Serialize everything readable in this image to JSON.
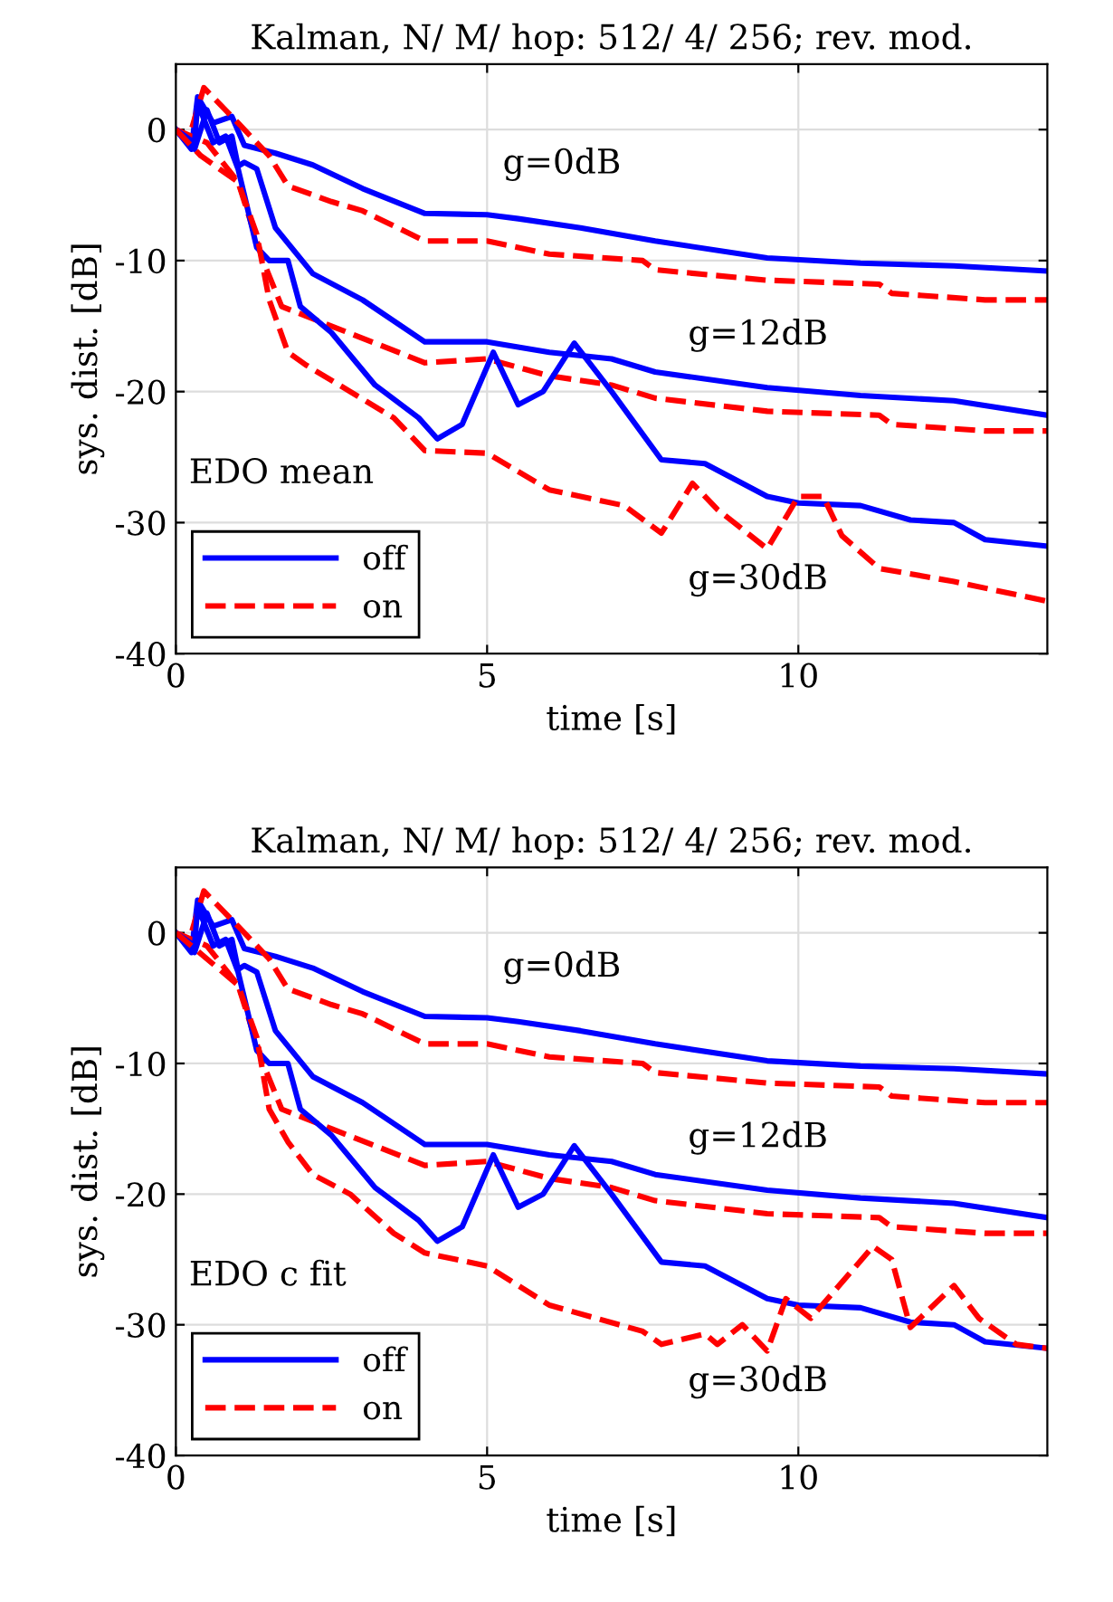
{
  "chart_data": [
    {
      "type": "line",
      "title": "Kalman, N/ M/ hop: 512/ 4/ 256; rev. mod.",
      "xlabel": "time [s]",
      "ylabel": "sys. dist. [dB]",
      "xlim": [
        0,
        14
      ],
      "ylim": [
        -40,
        5
      ],
      "xticks": [
        0,
        5,
        10
      ],
      "yticks": [
        -40,
        -30,
        -20,
        -10,
        0
      ],
      "grid": true,
      "legend": "bottom left",
      "annotations": [
        "EDO mean",
        "g=0dB",
        "g=12dB",
        "g=30dB"
      ],
      "series": [
        {
          "name": "off",
          "color": "#0000ff",
          "line_style": "solid",
          "x": [
            0,
            0.25,
            0.35,
            0.6,
            0.9,
            1.1,
            1.6,
            2.2,
            3,
            4,
            5,
            5.5,
            6.5,
            7.7,
            9.5,
            11,
            12.5,
            14
          ],
          "values": [
            0,
            -1.5,
            2.5,
            0.5,
            1,
            -1.2,
            -1.8,
            -2.7,
            -4.5,
            -6.4,
            -6.5,
            -6.8,
            -7.5,
            -8.5,
            -9.8,
            -10.2,
            -10.4,
            -10.8
          ]
        },
        {
          "name": "on",
          "color": "#ff0000",
          "line_style": "dashed",
          "x": [
            0,
            0.2,
            0.45,
            1,
            1.5,
            1.8,
            2.5,
            3,
            4,
            5,
            6,
            7.5,
            7.7,
            9.5,
            11.3,
            11.5,
            13,
            14
          ],
          "values": [
            0,
            -0.8,
            3.2,
            0.5,
            -2,
            -4.3,
            -5.5,
            -6.2,
            -8.5,
            -8.5,
            -9.5,
            -10,
            -10.7,
            -11.5,
            -11.8,
            -12.5,
            -13,
            -13
          ]
        },
        {
          "color": "#0000ff",
          "line_style": "solid",
          "x": [
            0,
            0.3,
            0.5,
            0.7,
            0.9,
            1,
            1.1,
            1.3,
            1.6,
            2.2,
            3,
            4,
            5,
            6,
            7,
            7.7,
            9.5,
            11,
            12.5,
            14
          ],
          "values": [
            0,
            -1.5,
            1.5,
            -1,
            -0.5,
            -2.8,
            -2.5,
            -3,
            -7.5,
            -11,
            -13,
            -16.2,
            -16.2,
            -17,
            -17.5,
            -18.5,
            -19.7,
            -20.3,
            -20.7,
            -21.8
          ]
        },
        {
          "color": "#ff0000",
          "line_style": "dashed",
          "x": [
            0,
            0.5,
            1,
            1.4,
            1.7,
            2.5,
            3.2,
            4,
            5,
            6,
            7,
            7.7,
            9.5,
            11.3,
            11.5,
            13,
            14
          ],
          "values": [
            0,
            -1,
            -4,
            -10,
            -13.5,
            -15,
            -16.3,
            -17.8,
            -17.5,
            -18.8,
            -19.5,
            -20.5,
            -21.5,
            -21.8,
            -22.5,
            -23,
            -23
          ]
        },
        {
          "color": "#0000ff",
          "line_style": "solid",
          "x": [
            0,
            0.3,
            0.35,
            0.6,
            0.8,
            1,
            1.1,
            1.3,
            1.5,
            1.8,
            2,
            2.5,
            3.2,
            3.9,
            4.2,
            4.6,
            5.1,
            5.5,
            5.9,
            6.4,
            7,
            7.8,
            8.5,
            9.5,
            10,
            11,
            11.8,
            12.5,
            13,
            14
          ],
          "values": [
            0,
            -1,
            2,
            -1,
            -0.5,
            -3,
            -5,
            -9,
            -10,
            -10,
            -13.5,
            -15.5,
            -19.5,
            -22,
            -23.6,
            -22.5,
            -17,
            -21,
            -20,
            -16.3,
            -20,
            -25.2,
            -25.5,
            -28,
            -28.5,
            -28.7,
            -29.8,
            -30,
            -31.3,
            -31.8
          ]
        },
        {
          "color": "#ff0000",
          "line_style": "dashed",
          "x": [
            0,
            0.4,
            1,
            1.3,
            1.5,
            1.8,
            2.1,
            3.5,
            4,
            5,
            6,
            7.2,
            7.8,
            8.3,
            8.7,
            9.5,
            10,
            10.4,
            10.7,
            11.3,
            12.5,
            14
          ],
          "values": [
            0,
            -2,
            -4,
            -8,
            -13,
            -17,
            -18,
            -22,
            -24.5,
            -24.7,
            -27.5,
            -28.7,
            -30.8,
            -27,
            -29,
            -32,
            -28,
            -28,
            -31,
            -33.5,
            -34.5,
            -36
          ]
        }
      ]
    },
    {
      "type": "line",
      "title": "Kalman, N/ M/ hop: 512/ 4/ 256; rev. mod.",
      "xlabel": "time [s]",
      "ylabel": "sys. dist. [dB]",
      "xlim": [
        0,
        14
      ],
      "ylim": [
        -40,
        5
      ],
      "xticks": [
        0,
        5,
        10
      ],
      "yticks": [
        -40,
        -30,
        -20,
        -10,
        0
      ],
      "grid": true,
      "legend": "bottom left",
      "annotations": [
        "EDO c fit",
        "g=0dB",
        "g=12dB",
        "g=30dB"
      ],
      "series": [
        {
          "name": "off",
          "color": "#0000ff",
          "line_style": "solid",
          "x": [
            0,
            0.25,
            0.35,
            0.6,
            0.9,
            1.1,
            1.6,
            2.2,
            3,
            4,
            5,
            5.5,
            6.5,
            7.7,
            9.5,
            11,
            12.5,
            14
          ],
          "values": [
            0,
            -1.5,
            2.5,
            0.5,
            1,
            -1.2,
            -1.8,
            -2.7,
            -4.5,
            -6.4,
            -6.5,
            -6.8,
            -7.5,
            -8.5,
            -9.8,
            -10.2,
            -10.4,
            -10.8
          ]
        },
        {
          "name": "on",
          "color": "#ff0000",
          "line_style": "dashed",
          "x": [
            0,
            0.2,
            0.45,
            1,
            1.5,
            1.8,
            2.5,
            3,
            4,
            5,
            6,
            7.5,
            7.7,
            9.5,
            11.3,
            11.5,
            13,
            14
          ],
          "values": [
            0,
            -0.8,
            3.2,
            0.5,
            -2,
            -4.3,
            -5.5,
            -6.2,
            -8.5,
            -8.5,
            -9.5,
            -10,
            -10.7,
            -11.5,
            -11.8,
            -12.5,
            -13,
            -13
          ]
        },
        {
          "color": "#0000ff",
          "line_style": "solid",
          "x": [
            0,
            0.3,
            0.5,
            0.7,
            0.9,
            1,
            1.1,
            1.3,
            1.6,
            2.2,
            3,
            4,
            5,
            6,
            7,
            7.7,
            9.5,
            11,
            12.5,
            14
          ],
          "values": [
            0,
            -1.5,
            1.5,
            -1,
            -0.5,
            -2.8,
            -2.5,
            -3,
            -7.5,
            -11,
            -13,
            -16.2,
            -16.2,
            -17,
            -17.5,
            -18.5,
            -19.7,
            -20.3,
            -20.7,
            -21.8
          ]
        },
        {
          "color": "#ff0000",
          "line_style": "dashed",
          "x": [
            0,
            0.5,
            1,
            1.4,
            1.7,
            2.5,
            3.2,
            4,
            5,
            6,
            7,
            7.7,
            9.5,
            11.3,
            11.5,
            13,
            14
          ],
          "values": [
            0,
            -1,
            -4,
            -10,
            -13.5,
            -15,
            -16.3,
            -17.8,
            -17.5,
            -18.8,
            -19.5,
            -20.5,
            -21.5,
            -21.8,
            -22.5,
            -23,
            -23
          ]
        },
        {
          "color": "#0000ff",
          "line_style": "solid",
          "x": [
            0,
            0.3,
            0.35,
            0.6,
            0.8,
            1,
            1.1,
            1.3,
            1.5,
            1.8,
            2,
            2.5,
            3.2,
            3.9,
            4.2,
            4.6,
            5.1,
            5.5,
            5.9,
            6.4,
            7,
            7.8,
            8.5,
            9.5,
            10,
            11,
            11.8,
            12.5,
            13,
            14
          ],
          "values": [
            0,
            -1,
            2,
            -1,
            -0.5,
            -3,
            -5,
            -9,
            -10,
            -10,
            -13.5,
            -15.5,
            -19.5,
            -22,
            -23.6,
            -22.5,
            -17,
            -21,
            -20,
            -16.3,
            -20,
            -25.2,
            -25.5,
            -28,
            -28.5,
            -28.7,
            -29.8,
            -30,
            -31.3,
            -31.8
          ]
        },
        {
          "color": "#ff0000",
          "line_style": "dashed",
          "x": [
            0,
            1,
            1.3,
            1.5,
            1.8,
            2.2,
            2.8,
            3.5,
            4,
            5,
            6,
            7.5,
            7.8,
            8.5,
            8.7,
            9.1,
            9.5,
            9.8,
            10.2,
            11.2,
            11.5,
            11.8,
            12.5,
            12.9,
            13.5,
            14
          ],
          "values": [
            0,
            -4,
            -8,
            -13.5,
            -16,
            -18.5,
            -20,
            -23,
            -24.5,
            -25.5,
            -28.5,
            -30.5,
            -31.5,
            -30.7,
            -31.5,
            -30,
            -32,
            -28,
            -29.5,
            -24,
            -25,
            -30.2,
            -27,
            -29.5,
            -31.5,
            -31.8
          ]
        }
      ]
    }
  ]
}
